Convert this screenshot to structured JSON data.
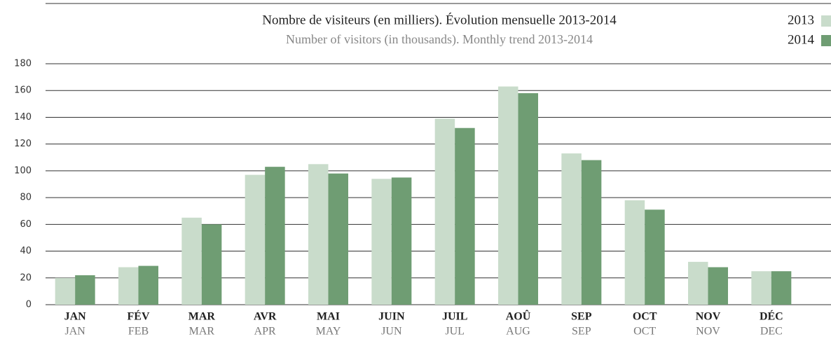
{
  "chart_data": {
    "type": "bar",
    "title": "Nombre de visiteurs (en milliers). Évolution mensuelle 2013-2014",
    "subtitle": "Number of visitors (in thousands). Monthly trend 2013-2014",
    "categories": [
      "JAN",
      "FÉV",
      "MAR",
      "AVR",
      "MAI",
      "JUIN",
      "JUIL",
      "AOÛ",
      "SEP",
      "OCT",
      "NOV",
      "DÉC"
    ],
    "categories_en": [
      "JAN",
      "FEB",
      "MAR",
      "APR",
      "MAY",
      "JUN",
      "JUL",
      "AUG",
      "SEP",
      "OCT",
      "NOV",
      "DEC"
    ],
    "series": [
      {
        "name": "2013",
        "color": "#c9dccb",
        "values": [
          20,
          28,
          65,
          97,
          105,
          94,
          139,
          163,
          113,
          78,
          32,
          25
        ]
      },
      {
        "name": "2014",
        "color": "#6f9d73",
        "values": [
          22,
          29,
          60,
          103,
          98,
          95,
          132,
          158,
          108,
          71,
          28,
          25
        ]
      }
    ],
    "ylim": [
      0,
      180
    ],
    "yticks": [
      0,
      20,
      40,
      60,
      80,
      100,
      120,
      140,
      160,
      180
    ],
    "grid": true,
    "legend": "top-right"
  }
}
